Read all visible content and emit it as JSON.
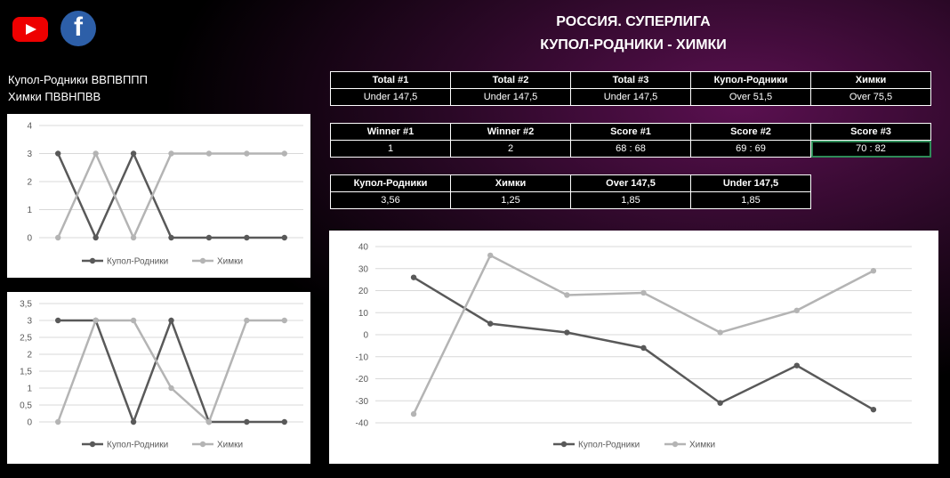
{
  "header": {
    "title_line1": "РОССИЯ. СУПЕРЛИГА",
    "title_line2": "КУПОЛ-РОДНИКИ - ХИМКИ",
    "icons": [
      "youtube-icon",
      "facebook-icon"
    ],
    "facebook_letter": "f"
  },
  "form": {
    "team1": "Купол-Родники ВВПВППП",
    "team2": "Химки ПВВНПВВ"
  },
  "table1": {
    "headers": [
      "Total #1",
      "Total #2",
      "Total #3",
      "Купол-Родники",
      "Химки"
    ],
    "values": [
      "Under 147,5",
      "Under 147,5",
      "Under 147,5",
      "Over 51,5",
      "Over 75,5"
    ]
  },
  "table2": {
    "headers": [
      "Winner #1",
      "Winner #2",
      "Score #1",
      "Score #2",
      "Score #3"
    ],
    "values": [
      "1",
      "2",
      "68 : 68",
      "69 : 69",
      "70 : 82"
    ]
  },
  "table3": {
    "headers": [
      "Купол-Родники",
      "Химки",
      "Over 147,5",
      "Under 147,5"
    ],
    "values": [
      "3,56",
      "1,25",
      "1,85",
      "1,85"
    ]
  },
  "colors": {
    "series1": "#595959",
    "series2": "#b4b4b4",
    "selected_cell": "#2e8b57",
    "youtube": "#ee0000",
    "facebook": "#2d5fa8"
  },
  "chart_data": [
    {
      "type": "line",
      "x": [
        1,
        2,
        3,
        4,
        5,
        6,
        7
      ],
      "ylim": [
        0,
        4
      ],
      "yticks": [
        "0",
        "1",
        "2",
        "3",
        "4"
      ],
      "series": [
        {
          "name": "Купол-Родники",
          "values": [
            3,
            0,
            3,
            0,
            0,
            0,
            0
          ]
        },
        {
          "name": "Химки",
          "values": [
            0,
            3,
            0,
            3,
            3,
            3,
            3
          ]
        }
      ],
      "grid": true,
      "legend": "bottom"
    },
    {
      "type": "line",
      "x": [
        1,
        2,
        3,
        4,
        5,
        6,
        7
      ],
      "ylim": [
        0,
        3.5
      ],
      "yticks": [
        "0",
        "0,5",
        "1",
        "1,5",
        "2",
        "2,5",
        "3",
        "3,5"
      ],
      "series": [
        {
          "name": "Купол-Родники",
          "values": [
            3,
            3,
            0,
            3,
            0,
            0,
            0
          ]
        },
        {
          "name": "Химки",
          "values": [
            0,
            3,
            3,
            1,
            0,
            3,
            3
          ]
        }
      ],
      "grid": true,
      "legend": "bottom"
    },
    {
      "type": "line",
      "x": [
        1,
        2,
        3,
        4,
        5,
        6,
        7
      ],
      "ylim": [
        -40,
        40
      ],
      "yticks": [
        "-40",
        "-30",
        "-20",
        "-10",
        "0",
        "10",
        "20",
        "30",
        "40"
      ],
      "series": [
        {
          "name": "Купол-Родники",
          "values": [
            26,
            5,
            1,
            -6,
            -31,
            -14,
            -34
          ]
        },
        {
          "name": "Химки",
          "values": [
            -36,
            36,
            18,
            19,
            1,
            11,
            29
          ]
        }
      ],
      "grid": true,
      "legend": "bottom"
    }
  ]
}
